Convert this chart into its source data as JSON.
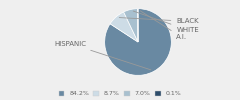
{
  "labels": [
    "HISPANIC",
    "BLACK",
    "WHITE",
    "A.I."
  ],
  "values": [
    84.2,
    8.7,
    7.0,
    0.1
  ],
  "colors": [
    "#6989a2",
    "#cddce6",
    "#a8c0cf",
    "#2e4d6b"
  ],
  "legend_labels": [
    "84.2%",
    "8.7%",
    "7.0%",
    "0.1%"
  ],
  "startangle": 90,
  "background_color": "#efefef",
  "label_color": "#666666",
  "line_color": "#999999",
  "font_size": 5.0,
  "legend_font_size": 4.5
}
